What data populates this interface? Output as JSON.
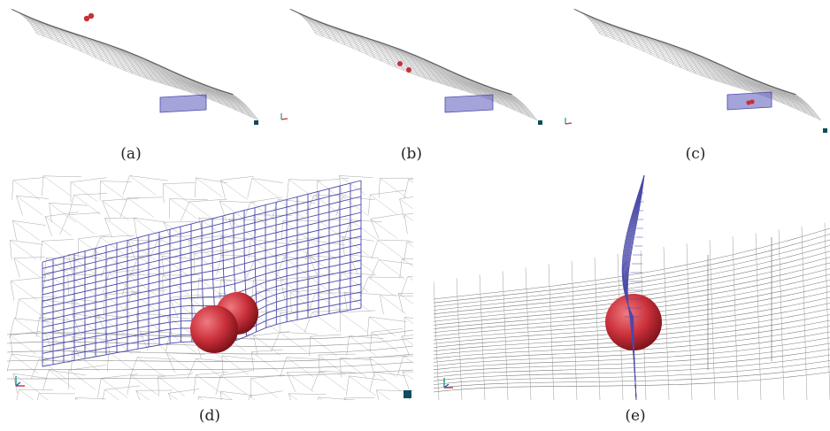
{
  "figure": {
    "panels": [
      {
        "id": "a",
        "caption": "(a)"
      },
      {
        "id": "b",
        "caption": "(b)"
      },
      {
        "id": "c",
        "caption": "(c)"
      },
      {
        "id": "d",
        "caption": "(d)"
      },
      {
        "id": "e",
        "caption": "(e)"
      }
    ],
    "colors": {
      "terrain_mesh": "#a8a8a8",
      "barrier_net": "#4a4aa8",
      "boulder": "#c9303a",
      "background": "#ffffff",
      "corner_marker": "#0f4c5c"
    },
    "icons": [
      "axis-triad-icon",
      "corner-marker-icon"
    ]
  }
}
